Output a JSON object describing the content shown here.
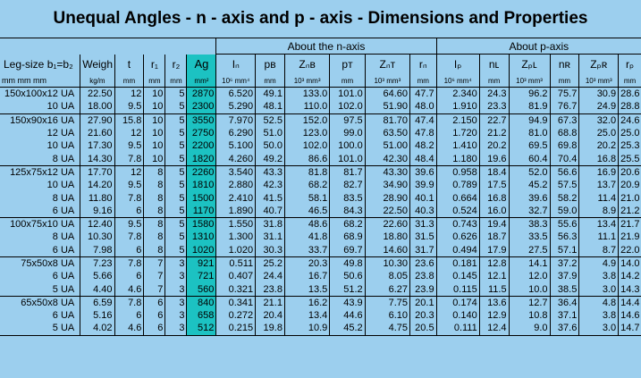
{
  "title": "Unequal Angles - n - axis and p - axis - Dimensions and Properties",
  "group_headers": {
    "n_axis": "About the n-axis",
    "p_axis": "About p-axis"
  },
  "columns": [
    {
      "key": "leg",
      "label": "Leg-size b₁=b₂",
      "unit": "mm mm  mm"
    },
    {
      "key": "weight",
      "label": "Weigh",
      "unit": "kg/m"
    },
    {
      "key": "t",
      "label": "t",
      "unit": "mm"
    },
    {
      "key": "r1",
      "label": "r₁",
      "unit": "mm"
    },
    {
      "key": "r2",
      "label": "r₂",
      "unit": "mm"
    },
    {
      "key": "ag",
      "label": "Ag",
      "unit": "mm²"
    },
    {
      "key": "In",
      "label": "Iₙ",
      "unit": "10⁶ mm⁴"
    },
    {
      "key": "pB",
      "label": "pʙ",
      "unit": "mm"
    },
    {
      "key": "ZnB",
      "label": "Zₙʙ",
      "unit": "10³ mm³"
    },
    {
      "key": "pT",
      "label": "pᴛ",
      "unit": "mm"
    },
    {
      "key": "ZnT",
      "label": "Zₙᴛ",
      "unit": "10³ mm³"
    },
    {
      "key": "rn",
      "label": "rₙ",
      "unit": "mm"
    },
    {
      "key": "Ip",
      "label": "Iₚ",
      "unit": "10⁶ mm⁴"
    },
    {
      "key": "nL",
      "label": "nʟ",
      "unit": "mm"
    },
    {
      "key": "ZpL",
      "label": "Zₚʟ",
      "unit": "10³ mm³"
    },
    {
      "key": "nR",
      "label": "nʀ",
      "unit": "mm"
    },
    {
      "key": "ZpR",
      "label": "Zₚʀ",
      "unit": "10³ mm³"
    },
    {
      "key": "rp",
      "label": "rₚ",
      "unit": "mm"
    }
  ],
  "groups": [
    {
      "rows": [
        [
          "150x100x12 UA",
          "22.50",
          "12",
          "10",
          "5",
          "2870",
          "6.520",
          "49.1",
          "133.0",
          "101.0",
          "64.60",
          "47.7",
          "2.340",
          "24.3",
          "96.2",
          "75.7",
          "30.9",
          "28.6"
        ],
        [
          "10 UA",
          "18.00",
          "9.5",
          "10",
          "5",
          "2300",
          "5.290",
          "48.1",
          "110.0",
          "102.0",
          "51.90",
          "48.0",
          "1.910",
          "23.3",
          "81.9",
          "76.7",
          "24.9",
          "28.8"
        ]
      ]
    },
    {
      "rows": [
        [
          "150x90x16 UA",
          "27.90",
          "15.8",
          "10",
          "5",
          "3550",
          "7.970",
          "52.5",
          "152.0",
          "97.5",
          "81.70",
          "47.4",
          "2.150",
          "22.7",
          "94.9",
          "67.3",
          "32.0",
          "24.6"
        ],
        [
          "12 UA",
          "21.60",
          "12",
          "10",
          "5",
          "2750",
          "6.290",
          "51.0",
          "123.0",
          "99.0",
          "63.50",
          "47.8",
          "1.720",
          "21.2",
          "81.0",
          "68.8",
          "25.0",
          "25.0"
        ],
        [
          "10 UA",
          "17.30",
          "9.5",
          "10",
          "5",
          "2200",
          "5.100",
          "50.0",
          "102.0",
          "100.0",
          "51.00",
          "48.2",
          "1.410",
          "20.2",
          "69.5",
          "69.8",
          "20.2",
          "25.3"
        ],
        [
          "8 UA",
          "14.30",
          "7.8",
          "10",
          "5",
          "1820",
          "4.260",
          "49.2",
          "86.6",
          "101.0",
          "42.30",
          "48.4",
          "1.180",
          "19.6",
          "60.4",
          "70.4",
          "16.8",
          "25.5"
        ]
      ]
    },
    {
      "rows": [
        [
          "125x75x12 UA",
          "17.70",
          "12",
          "8",
          "5",
          "2260",
          "3.540",
          "43.3",
          "81.8",
          "81.7",
          "43.30",
          "39.6",
          "0.958",
          "18.4",
          "52.0",
          "56.6",
          "16.9",
          "20.6"
        ],
        [
          "10 UA",
          "14.20",
          "9.5",
          "8",
          "5",
          "1810",
          "2.880",
          "42.3",
          "68.2",
          "82.7",
          "34.90",
          "39.9",
          "0.789",
          "17.5",
          "45.2",
          "57.5",
          "13.7",
          "20.9"
        ],
        [
          "8 UA",
          "11.80",
          "7.8",
          "8",
          "5",
          "1500",
          "2.410",
          "41.5",
          "58.1",
          "83.5",
          "28.90",
          "40.1",
          "0.664",
          "16.8",
          "39.6",
          "58.2",
          "11.4",
          "21.0"
        ],
        [
          "6 UA",
          "9.16",
          "6",
          "8",
          "5",
          "1170",
          "1.890",
          "40.7",
          "46.5",
          "84.3",
          "22.50",
          "40.3",
          "0.524",
          "16.0",
          "32.7",
          "59.0",
          "8.9",
          "21.2"
        ]
      ]
    },
    {
      "rows": [
        [
          "100x75x10 UA",
          "12.40",
          "9.5",
          "8",
          "5",
          "1580",
          "1.550",
          "31.8",
          "48.6",
          "68.2",
          "22.60",
          "31.3",
          "0.743",
          "19.4",
          "38.3",
          "55.6",
          "13.4",
          "21.7"
        ],
        [
          "8 UA",
          "10.30",
          "7.8",
          "8",
          "5",
          "1310",
          "1.300",
          "31.1",
          "41.8",
          "68.9",
          "18.80",
          "31.5",
          "0.626",
          "18.7",
          "33.5",
          "56.3",
          "11.1",
          "21.9"
        ],
        [
          "6 UA",
          "7.98",
          "6",
          "8",
          "5",
          "1020",
          "1.020",
          "30.3",
          "33.7",
          "69.7",
          "14.60",
          "31.7",
          "0.494",
          "17.9",
          "27.5",
          "57.1",
          "8.7",
          "22.0"
        ]
      ]
    },
    {
      "rows": [
        [
          "75x50x8 UA",
          "7.23",
          "7.8",
          "7",
          "3",
          "921",
          "0.511",
          "25.2",
          "20.3",
          "49.8",
          "10.30",
          "23.6",
          "0.181",
          "12.8",
          "14.1",
          "37.2",
          "4.9",
          "14.0"
        ],
        [
          "6 UA",
          "5.66",
          "6",
          "7",
          "3",
          "721",
          "0.407",
          "24.4",
          "16.7",
          "50.6",
          "8.05",
          "23.8",
          "0.145",
          "12.1",
          "12.0",
          "37.9",
          "3.8",
          "14.2"
        ],
        [
          "5 UA",
          "4.40",
          "4.6",
          "7",
          "3",
          "560",
          "0.321",
          "23.8",
          "13.5",
          "51.2",
          "6.27",
          "23.9",
          "0.115",
          "11.5",
          "10.0",
          "38.5",
          "3.0",
          "14.3"
        ]
      ]
    },
    {
      "rows": [
        [
          "65x50x8 UA",
          "6.59",
          "7.8",
          "6",
          "3",
          "840",
          "0.341",
          "21.1",
          "16.2",
          "43.9",
          "7.75",
          "20.1",
          "0.174",
          "13.6",
          "12.7",
          "36.4",
          "4.8",
          "14.4"
        ],
        [
          "6 UA",
          "5.16",
          "6",
          "6",
          "3",
          "658",
          "0.272",
          "20.4",
          "13.4",
          "44.6",
          "6.10",
          "20.3",
          "0.140",
          "12.9",
          "10.8",
          "37.1",
          "3.8",
          "14.6"
        ],
        [
          "5 UA",
          "4.02",
          "4.6",
          "6",
          "3",
          "512",
          "0.215",
          "19.8",
          "10.9",
          "45.2",
          "4.75",
          "20.5",
          "0.111",
          "12.4",
          "9.0",
          "37.6",
          "3.0",
          "14.7"
        ]
      ]
    }
  ]
}
